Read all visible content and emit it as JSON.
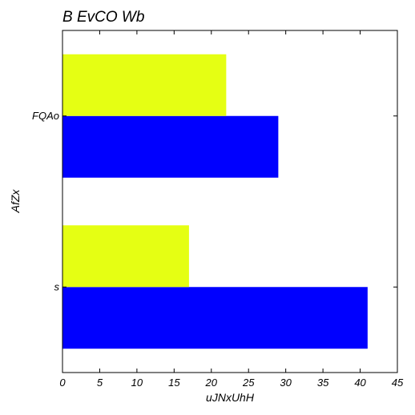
{
  "chart_data": {
    "type": "bar",
    "orientation": "horizontal",
    "title": "B  EvCO Wb",
    "xlabel": "uJNxUhH",
    "ylabel": "AfZx",
    "categories": [
      "s",
      "FQAo"
    ],
    "series": [
      {
        "color": "#0000ff",
        "values": [
          41,
          29
        ]
      },
      {
        "color": "#e5ff13",
        "values": [
          17,
          22
        ]
      }
    ],
    "xlim": [
      0,
      45
    ],
    "x_ticks": [
      0,
      5,
      10,
      15,
      20,
      25,
      30,
      35,
      40,
      45
    ],
    "grid": false,
    "legend": "none"
  }
}
